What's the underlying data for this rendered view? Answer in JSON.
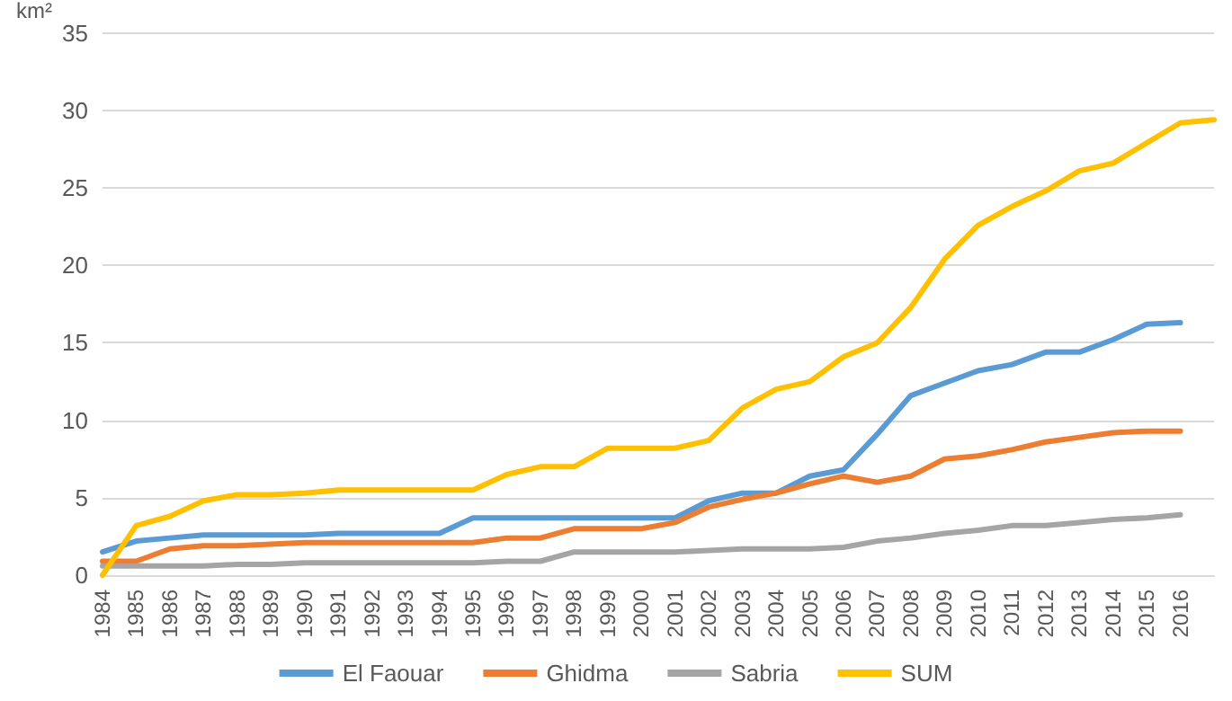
{
  "chart_data": {
    "type": "line",
    "ylabel": "km²",
    "categories": [
      "1984",
      "1985",
      "1986",
      "1987",
      "1988",
      "1989",
      "1990",
      "1991",
      "1992",
      "1993",
      "1994",
      "1995",
      "1996",
      "1997",
      "1998",
      "1999",
      "2000",
      "2001",
      "2002",
      "2003",
      "2004",
      "2005",
      "2006",
      "2007",
      "2008",
      "2009",
      "2010",
      "2011",
      "2012",
      "2013",
      "2014",
      "2015",
      "2016",
      null
    ],
    "series": [
      {
        "name": "El Faouar",
        "color": "#5b9bd5",
        "values": [
          1.5,
          2.2,
          2.4,
          2.6,
          2.6,
          2.6,
          2.6,
          2.7,
          2.7,
          2.7,
          2.7,
          3.7,
          3.7,
          3.7,
          3.7,
          3.7,
          3.7,
          3.7,
          4.8,
          5.3,
          5.3,
          6.4,
          6.8,
          9.1,
          11.6,
          12.4,
          13.2,
          13.6,
          14.4,
          14.4,
          15.2,
          16.2,
          16.3,
          null
        ]
      },
      {
        "name": "Ghidma",
        "color": "#ed7d31",
        "values": [
          0.9,
          0.9,
          1.7,
          1.9,
          1.9,
          2.0,
          2.1,
          2.1,
          2.1,
          2.1,
          2.1,
          2.1,
          2.4,
          2.4,
          3.0,
          3.0,
          3.0,
          3.4,
          4.4,
          4.9,
          5.3,
          5.9,
          6.4,
          6.0,
          6.4,
          7.5,
          7.7,
          8.1,
          8.6,
          8.9,
          9.2,
          9.3,
          9.3,
          null
        ]
      },
      {
        "name": "Sabria",
        "color": "#a5a5a5",
        "values": [
          0.6,
          0.6,
          0.6,
          0.6,
          0.7,
          0.7,
          0.8,
          0.8,
          0.8,
          0.8,
          0.8,
          0.8,
          0.9,
          0.9,
          1.5,
          1.5,
          1.5,
          1.5,
          1.6,
          1.7,
          1.7,
          1.7,
          1.8,
          2.2,
          2.4,
          2.7,
          2.9,
          3.2,
          3.2,
          3.4,
          3.6,
          3.7,
          3.9,
          null
        ]
      },
      {
        "name": "SUM",
        "color": "#ffc000",
        "values": [
          0,
          3.2,
          3.8,
          4.8,
          5.2,
          5.2,
          5.3,
          5.5,
          5.5,
          5.5,
          5.5,
          5.5,
          6.5,
          7.0,
          7.0,
          8.2,
          8.2,
          8.2,
          8.7,
          10.8,
          12.0,
          12.5,
          14.1,
          15.0,
          17.3,
          20.4,
          22.6,
          23.8,
          24.8,
          26.1,
          26.6,
          27.9,
          29.2,
          29.4
        ]
      }
    ],
    "ylim": [
      0,
      35
    ],
    "yticks": [
      0,
      5,
      10,
      15,
      20,
      25,
      30,
      35
    ],
    "grid": "y",
    "legend": "bottom",
    "marker": "none",
    "line_style": "solid"
  }
}
